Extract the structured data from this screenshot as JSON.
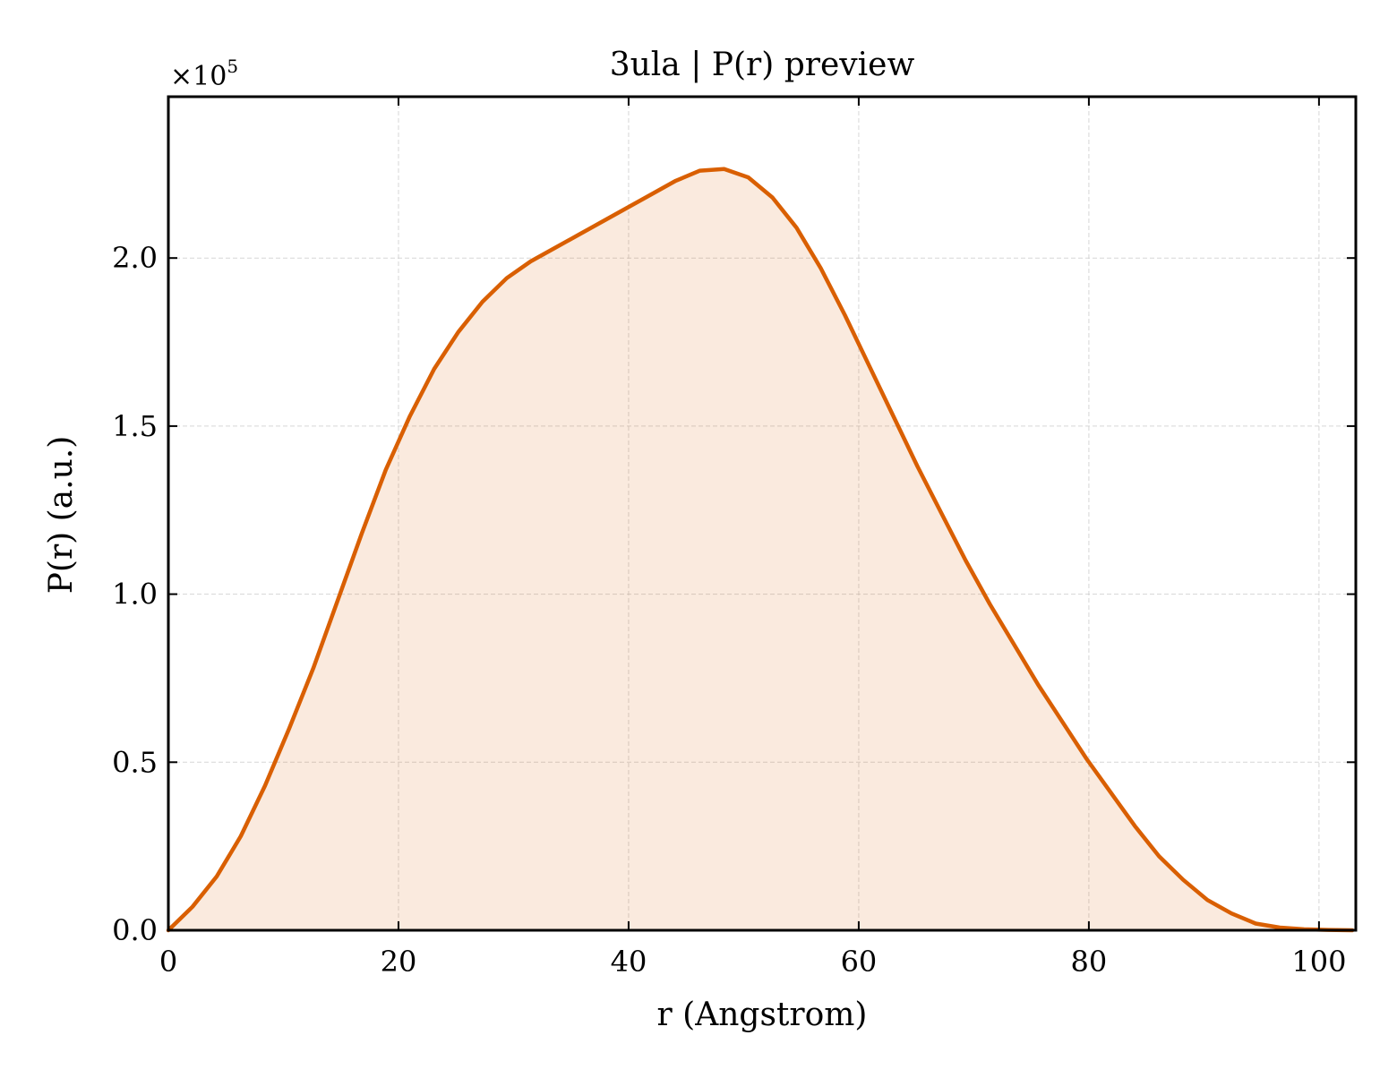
{
  "chart_data": {
    "type": "area",
    "title": "3ula | P(r) preview",
    "xlabel": "r (Angstrom)",
    "ylabel": "P(r) (a.u.)",
    "y_multiplier_label": "×10",
    "y_multiplier_exponent": "5",
    "xlim": [
      0,
      103.2
    ],
    "ylim": [
      0,
      2.48
    ],
    "xticks": [
      0,
      20,
      40,
      60,
      80,
      100
    ],
    "xtick_labels": [
      "0",
      "20",
      "40",
      "60",
      "80",
      "100"
    ],
    "yticks": [
      0.0,
      0.5,
      1.0,
      1.5,
      2.0
    ],
    "ytick_labels": [
      "0.0",
      "0.5",
      "1.0",
      "1.5",
      "2.0"
    ],
    "grid": true,
    "series": [
      {
        "color": "#d95f02",
        "fill_color": "#d95f02",
        "fill_opacity": 0.13,
        "x": [
          0,
          2.1,
          4.2,
          6.3,
          8.4,
          10.5,
          12.6,
          14.7,
          16.8,
          18.9,
          21.0,
          23.1,
          25.2,
          27.3,
          29.4,
          31.5,
          33.6,
          35.7,
          37.8,
          39.9,
          42.0,
          44.1,
          46.2,
          48.3,
          50.4,
          52.5,
          54.6,
          56.7,
          58.8,
          60.9,
          63.0,
          65.1,
          67.2,
          69.3,
          71.4,
          73.5,
          75.6,
          77.7,
          79.8,
          81.9,
          84.0,
          86.1,
          88.2,
          90.3,
          92.4,
          94.5,
          96.6,
          98.7,
          100.8,
          102.9
        ],
        "y": [
          0.0,
          0.07,
          0.16,
          0.28,
          0.43,
          0.6,
          0.78,
          0.98,
          1.18,
          1.37,
          1.53,
          1.67,
          1.78,
          1.87,
          1.94,
          1.99,
          2.03,
          2.07,
          2.11,
          2.15,
          2.19,
          2.23,
          2.26,
          2.265,
          2.24,
          2.18,
          2.09,
          1.97,
          1.83,
          1.68,
          1.53,
          1.38,
          1.24,
          1.1,
          0.97,
          0.85,
          0.73,
          0.62,
          0.51,
          0.41,
          0.31,
          0.22,
          0.15,
          0.09,
          0.05,
          0.02,
          0.008,
          0.003,
          0.001,
          0.0
        ]
      }
    ]
  }
}
